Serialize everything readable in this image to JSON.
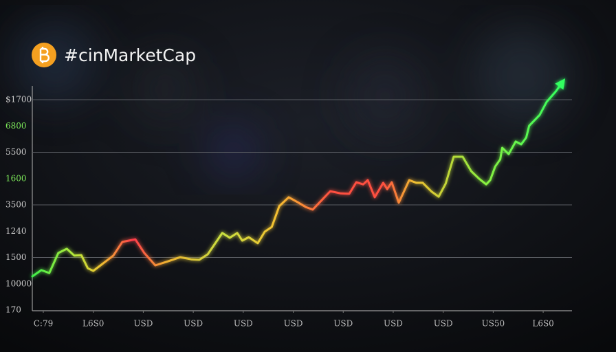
{
  "chart_data": {
    "type": "line",
    "title": "#cinMarketCap",
    "x": [
      -0.22,
      -0.04,
      0.12,
      0.3,
      0.47,
      0.62,
      0.76,
      0.89,
      1.0,
      1.2,
      1.4,
      1.58,
      1.84,
      2.02,
      2.24,
      2.5,
      2.74,
      2.96,
      3.12,
      3.29,
      3.58,
      3.73,
      3.88,
      3.98,
      4.11,
      4.29,
      4.43,
      4.57,
      4.72,
      4.91,
      5.09,
      5.25,
      5.39,
      5.6,
      5.74,
      5.94,
      6.12,
      6.26,
      6.4,
      6.49,
      6.63,
      6.8,
      6.88,
      6.97,
      7.11,
      7.32,
      7.46,
      7.59,
      7.77,
      7.91,
      8.05,
      8.21,
      8.39,
      8.56,
      8.72,
      8.86,
      8.94,
      9.04,
      9.14,
      9.18,
      9.31,
      9.45,
      9.56,
      9.66,
      9.72,
      9.93,
      10.07,
      10.25,
      10.38
    ],
    "series": [
      {
        "values": [
          1.28,
          1.52,
          1.41,
          2.17,
          2.33,
          2.07,
          2.09,
          1.59,
          1.49,
          1.78,
          2.07,
          2.59,
          2.69,
          2.17,
          1.7,
          1.86,
          2.01,
          1.93,
          1.91,
          2.12,
          2.93,
          2.75,
          2.93,
          2.64,
          2.77,
          2.54,
          2.98,
          3.16,
          3.95,
          4.29,
          4.1,
          3.92,
          3.82,
          4.24,
          4.52,
          4.44,
          4.42,
          4.86,
          4.78,
          4.94,
          4.29,
          4.84,
          4.6,
          4.86,
          4.08,
          4.94,
          4.84,
          4.84,
          4.5,
          4.31,
          4.81,
          5.83,
          5.83,
          5.28,
          4.99,
          4.78,
          4.94,
          5.46,
          5.73,
          6.17,
          5.93,
          6.41,
          6.3,
          6.56,
          7.01,
          7.42,
          7.92,
          8.31,
          8.65
        ]
      }
    ],
    "xlim": [
      -0.22,
      10.48
    ],
    "ylim": [
      0,
      8.8
    ],
    "xticks": [
      {
        "value": 0,
        "label": "C:79"
      },
      {
        "value": 1,
        "label": "L6S0"
      },
      {
        "value": 2,
        "label": "USD"
      },
      {
        "value": 3,
        "label": "USD"
      },
      {
        "value": 4,
        "label": "USD"
      },
      {
        "value": 5,
        "label": "USD"
      },
      {
        "value": 6,
        "label": "USD"
      },
      {
        "value": 7,
        "label": "USD"
      },
      {
        "value": 8,
        "label": "USD"
      },
      {
        "value": 9,
        "label": "US50"
      },
      {
        "value": 10,
        "label": "L6S0"
      }
    ],
    "yticks": [
      {
        "value": 0,
        "label": "170"
      },
      {
        "value": 1,
        "label": "10000"
      },
      {
        "value": 2,
        "label": "1500"
      },
      {
        "value": 3,
        "label": "1240"
      },
      {
        "value": 4,
        "label": "3500"
      },
      {
        "value": 5,
        "label": "1600"
      },
      {
        "value": 6,
        "label": "5500"
      },
      {
        "value": 7,
        "label": "6800"
      },
      {
        "value": 8,
        "label": "$1700"
      }
    ],
    "grid": true
  }
}
